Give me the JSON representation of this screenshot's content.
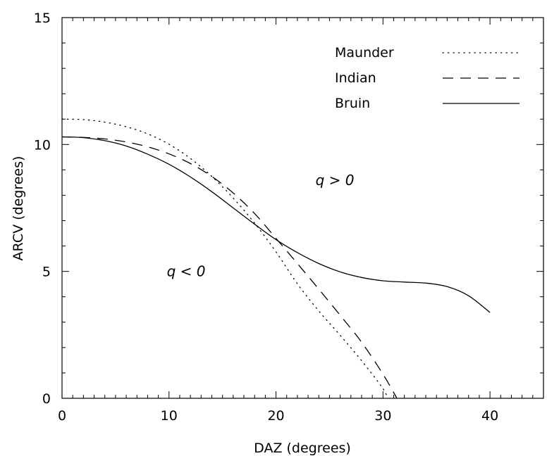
{
  "chart_data": {
    "type": "line",
    "xlabel": "DAZ (degrees)",
    "ylabel": "ARCV (degrees)",
    "xlim": [
      0,
      45
    ],
    "ylim": [
      0,
      15
    ],
    "x_ticks": [
      0,
      10,
      20,
      30,
      40
    ],
    "y_ticks": [
      0,
      5,
      10,
      15
    ],
    "x_tick_labels": [
      "0",
      "10",
      "20",
      "30",
      "40"
    ],
    "y_tick_labels": [
      "0",
      "5",
      "10",
      "15"
    ],
    "x_minor_step": 1,
    "y_minor_step": 1,
    "grid": false,
    "legend_position": "top-right",
    "series": [
      {
        "name": "Maunder",
        "style": "dotted",
        "x": [
          0,
          2,
          4,
          6,
          8,
          10,
          12,
          14,
          16,
          18,
          20,
          22,
          24,
          26,
          28,
          30,
          30.4
        ],
        "y": [
          11.0,
          10.98,
          10.88,
          10.7,
          10.42,
          10.01,
          9.45,
          8.74,
          7.89,
          6.9,
          5.77,
          4.51,
          3.44,
          2.48,
          1.48,
          0.38,
          0.0
        ]
      },
      {
        "name": "Indian",
        "style": "dashed",
        "x": [
          0,
          2,
          4,
          6,
          8,
          10,
          12,
          14,
          16,
          18,
          20,
          22,
          24,
          26,
          28,
          30,
          31.3
        ],
        "y": [
          10.3,
          10.28,
          10.22,
          10.1,
          9.91,
          9.63,
          9.25,
          8.74,
          8.09,
          7.28,
          6.3,
          5.31,
          4.3,
          3.27,
          2.21,
          0.95,
          0.0
        ]
      },
      {
        "name": "Bruin",
        "style": "solid",
        "x": [
          0,
          2,
          4,
          6,
          8,
          10,
          12,
          14,
          16,
          18,
          20,
          22,
          24,
          26,
          28,
          30,
          32,
          34,
          36,
          38,
          40
        ],
        "y": [
          10.3,
          10.27,
          10.15,
          9.94,
          9.62,
          9.22,
          8.72,
          8.14,
          7.5,
          6.86,
          6.25,
          5.74,
          5.31,
          4.98,
          4.76,
          4.63,
          4.58,
          4.54,
          4.4,
          4.04,
          3.38
        ]
      }
    ],
    "annotations": [
      {
        "text": "q > 0",
        "x": 25.5,
        "y": 8.6
      },
      {
        "text": "q < 0",
        "x": 11.6,
        "y": 5.0
      }
    ]
  }
}
